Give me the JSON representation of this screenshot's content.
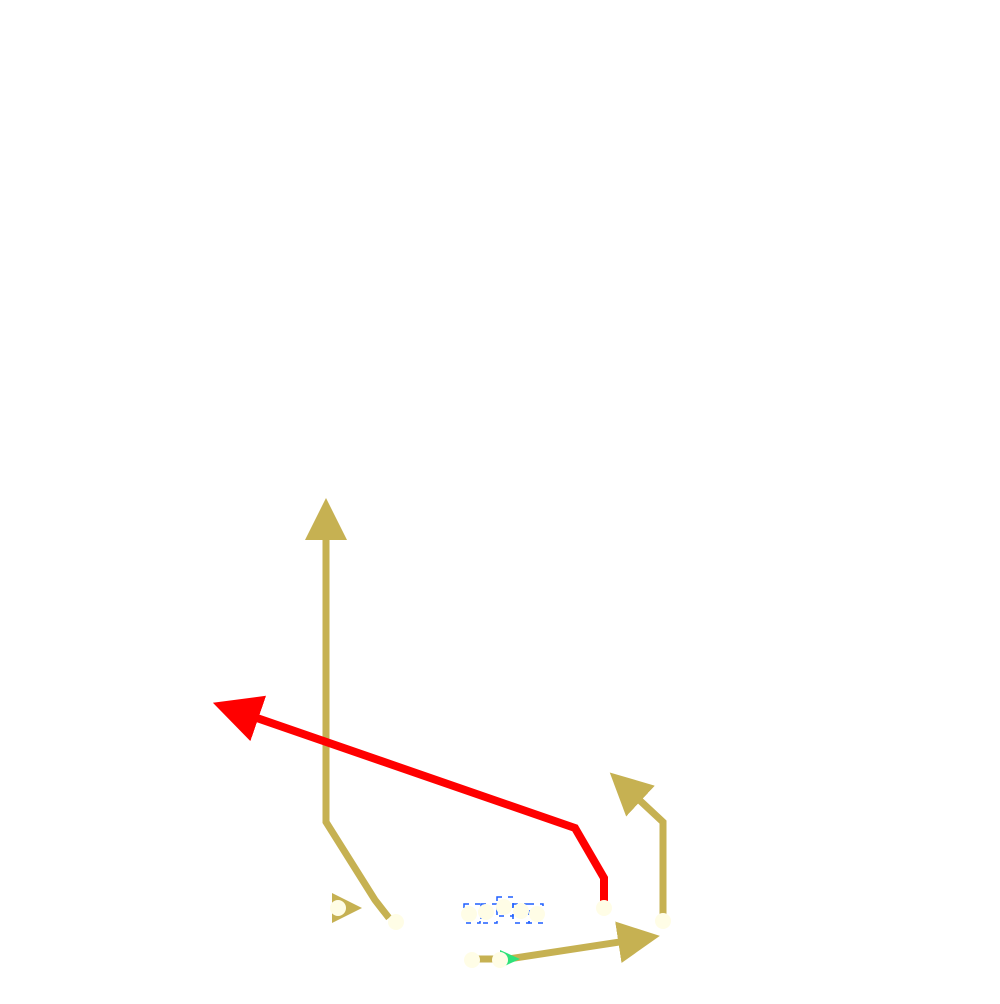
{
  "diagram": {
    "background": "#ffffff",
    "colors": {
      "route_gold": "#c6b152",
      "route_red": "#ff0000",
      "player_fill": "#fffde6",
      "lineman_outline": "#1f5fff",
      "motion_green": "#2ee27a"
    },
    "players": [
      {
        "id": "wr-left",
        "role": "receiver"
      },
      {
        "id": "te-left",
        "role": "receiver"
      },
      {
        "id": "ol-1",
        "role": "lineman"
      },
      {
        "id": "ol-2",
        "role": "lineman"
      },
      {
        "id": "ol-3",
        "role": "lineman"
      },
      {
        "id": "ol-4",
        "role": "lineman"
      },
      {
        "id": "ol-5",
        "role": "lineman"
      },
      {
        "id": "wr-slot",
        "role": "receiver"
      },
      {
        "id": "wr-right",
        "role": "receiver"
      },
      {
        "id": "qb",
        "role": "back"
      },
      {
        "id": "rb",
        "role": "back"
      }
    ],
    "routes": [
      {
        "id": "route-go",
        "player": "te-left",
        "color": "route_gold",
        "style": "arrow"
      },
      {
        "id": "route-post-corner",
        "player": "wr-slot",
        "color": "route_red",
        "style": "arrow"
      },
      {
        "id": "route-corner",
        "player": "wr-right",
        "color": "route_gold",
        "style": "arrow"
      },
      {
        "id": "route-flat",
        "player": "rb",
        "color": "route_gold",
        "style": "arrow"
      },
      {
        "id": "route-motion",
        "player": "wr-left",
        "color": "route_gold",
        "style": "short-arrow"
      }
    ]
  }
}
